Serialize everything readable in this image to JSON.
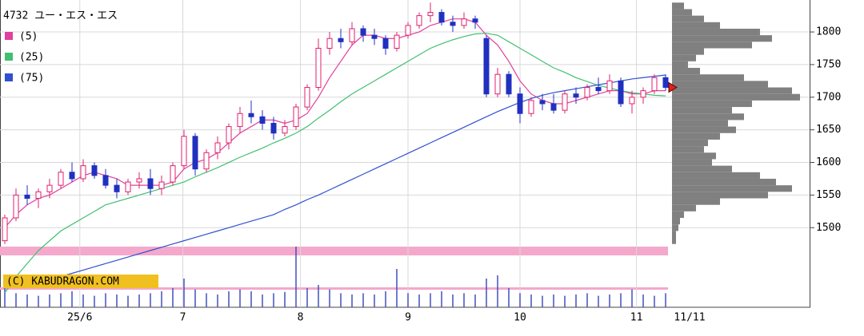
{
  "chart_data": {
    "type": "candlestick",
    "title": "4732 ユー・エス・エス",
    "watermark": "(C) KABUDRAGON.COM",
    "last_date": "11/11",
    "ylim": [
      1378,
      1849
    ],
    "yticks": [
      1500,
      1550,
      1600,
      1650,
      1700,
      1750,
      1800
    ],
    "grid": true,
    "xticks": [
      {
        "value": 6.7,
        "label": "25/6"
      },
      {
        "value": 15.9,
        "label": "7"
      },
      {
        "value": 26.4,
        "label": "8"
      },
      {
        "value": 36,
        "label": "9"
      },
      {
        "value": 46,
        "label": "10"
      },
      {
        "value": 56.4,
        "label": "11"
      }
    ],
    "up_color": "#e0206f",
    "down_color": "#2030c0",
    "candles": [
      [
        1480,
        1520,
        1475,
        1515
      ],
      [
        1515,
        1560,
        1510,
        1550
      ],
      [
        1550,
        1565,
        1535,
        1545
      ],
      [
        1545,
        1560,
        1530,
        1555
      ],
      [
        1555,
        1575,
        1545,
        1565
      ],
      [
        1565,
        1590,
        1560,
        1585
      ],
      [
        1585,
        1600,
        1570,
        1575
      ],
      [
        1575,
        1605,
        1570,
        1595
      ],
      [
        1595,
        1600,
        1575,
        1580
      ],
      [
        1580,
        1590,
        1560,
        1565
      ],
      [
        1565,
        1575,
        1545,
        1555
      ],
      [
        1555,
        1575,
        1550,
        1570
      ],
      [
        1570,
        1585,
        1560,
        1575
      ],
      [
        1575,
        1590,
        1550,
        1560
      ],
      [
        1560,
        1580,
        1550,
        1570
      ],
      [
        1570,
        1600,
        1565,
        1595
      ],
      [
        1595,
        1650,
        1590,
        1640
      ],
      [
        1640,
        1645,
        1580,
        1590
      ],
      [
        1590,
        1620,
        1585,
        1615
      ],
      [
        1615,
        1640,
        1605,
        1630
      ],
      [
        1630,
        1660,
        1620,
        1655
      ],
      [
        1655,
        1685,
        1645,
        1675
      ],
      [
        1675,
        1695,
        1660,
        1670
      ],
      [
        1670,
        1680,
        1650,
        1660
      ],
      [
        1660,
        1670,
        1635,
        1645
      ],
      [
        1645,
        1665,
        1640,
        1655
      ],
      [
        1655,
        1690,
        1650,
        1685
      ],
      [
        1685,
        1720,
        1680,
        1715
      ],
      [
        1715,
        1790,
        1710,
        1775
      ],
      [
        1775,
        1800,
        1765,
        1790
      ],
      [
        1790,
        1805,
        1775,
        1785
      ],
      [
        1785,
        1815,
        1780,
        1805
      ],
      [
        1805,
        1810,
        1785,
        1795
      ],
      [
        1795,
        1805,
        1780,
        1790
      ],
      [
        1790,
        1795,
        1765,
        1775
      ],
      [
        1775,
        1800,
        1770,
        1795
      ],
      [
        1795,
        1815,
        1790,
        1810
      ],
      [
        1810,
        1830,
        1805,
        1825
      ],
      [
        1825,
        1845,
        1815,
        1830
      ],
      [
        1830,
        1835,
        1810,
        1815
      ],
      [
        1815,
        1825,
        1800,
        1810
      ],
      [
        1810,
        1830,
        1805,
        1820
      ],
      [
        1820,
        1825,
        1805,
        1815
      ],
      [
        1790,
        1795,
        1700,
        1705
      ],
      [
        1705,
        1745,
        1700,
        1735
      ],
      [
        1735,
        1740,
        1700,
        1705
      ],
      [
        1705,
        1715,
        1660,
        1675
      ],
      [
        1675,
        1700,
        1670,
        1695
      ],
      [
        1695,
        1705,
        1680,
        1690
      ],
      [
        1690,
        1705,
        1675,
        1680
      ],
      [
        1680,
        1710,
        1675,
        1705
      ],
      [
        1705,
        1715,
        1690,
        1700
      ],
      [
        1700,
        1720,
        1695,
        1715
      ],
      [
        1715,
        1730,
        1705,
        1710
      ],
      [
        1710,
        1735,
        1705,
        1725
      ],
      [
        1725,
        1730,
        1685,
        1690
      ],
      [
        1690,
        1710,
        1675,
        1700
      ],
      [
        1700,
        1715,
        1690,
        1710
      ],
      [
        1710,
        1735,
        1705,
        1730
      ],
      [
        1730,
        1735,
        1710,
        1715
      ]
    ],
    "series": [
      {
        "name": "(5)",
        "color": "#e040a0",
        "values": [
          1500,
          1520,
          1535,
          1545,
          1550,
          1560,
          1570,
          1580,
          1585,
          1580,
          1575,
          1565,
          1565,
          1565,
          1565,
          1570,
          1590,
          1600,
          1605,
          1615,
          1630,
          1645,
          1655,
          1665,
          1665,
          1660,
          1665,
          1675,
          1700,
          1730,
          1755,
          1780,
          1795,
          1795,
          1790,
          1790,
          1795,
          1800,
          1810,
          1815,
          1820,
          1820,
          1815,
          1795,
          1780,
          1755,
          1725,
          1705,
          1695,
          1690,
          1690,
          1695,
          1700,
          1705,
          1710,
          1710,
          1705,
          1705,
          1710,
          1710
        ]
      },
      {
        "name": "(25)",
        "color": "#40c070",
        "values": [
          1400,
          1425,
          1445,
          1465,
          1480,
          1495,
          1505,
          1515,
          1525,
          1535,
          1540,
          1545,
          1550,
          1555,
          1560,
          1565,
          1570,
          1578,
          1585,
          1592,
          1600,
          1608,
          1615,
          1622,
          1630,
          1637,
          1645,
          1655,
          1668,
          1680,
          1693,
          1705,
          1715,
          1725,
          1735,
          1745,
          1755,
          1765,
          1775,
          1782,
          1788,
          1793,
          1797,
          1798,
          1795,
          1785,
          1775,
          1765,
          1755,
          1745,
          1738,
          1730,
          1724,
          1718,
          1714,
          1710,
          1707,
          1705,
          1703,
          1702
        ]
      },
      {
        "name": "(75)",
        "color": "#3050d0",
        "values": [
          null,
          null,
          null,
          null,
          1420,
          1425,
          1430,
          1435,
          1440,
          1445,
          1450,
          1455,
          1460,
          1465,
          1470,
          1475,
          1480,
          1485,
          1490,
          1495,
          1500,
          1505,
          1510,
          1515,
          1520,
          1528,
          1535,
          1543,
          1550,
          1558,
          1566,
          1574,
          1582,
          1590,
          1598,
          1606,
          1614,
          1622,
          1630,
          1638,
          1646,
          1654,
          1662,
          1670,
          1678,
          1685,
          1692,
          1698,
          1703,
          1707,
          1710,
          1713,
          1716,
          1719,
          1722,
          1725,
          1728,
          1730,
          1732,
          1734
        ]
      }
    ],
    "volume": {
      "color": "#4050c0",
      "ylim": [
        0,
        100
      ],
      "values": [
        30,
        22,
        20,
        18,
        20,
        22,
        25,
        20,
        18,
        22,
        20,
        18,
        20,
        22,
        25,
        30,
        45,
        28,
        22,
        20,
        25,
        28,
        25,
        20,
        22,
        24,
        95,
        30,
        35,
        28,
        22,
        20,
        22,
        20,
        25,
        60,
        22,
        20,
        22,
        25,
        20,
        22,
        20,
        45,
        50,
        30,
        22,
        20,
        18,
        20,
        18,
        20,
        22,
        18,
        20,
        22,
        28,
        20,
        18,
        22
      ]
    },
    "volume_profile": {
      "color": "#808080",
      "xlim": [
        0,
        170
      ],
      "prices": [
        1840,
        1830,
        1820,
        1810,
        1800,
        1790,
        1780,
        1770,
        1760,
        1750,
        1740,
        1730,
        1720,
        1710,
        1700,
        1690,
        1680,
        1670,
        1660,
        1650,
        1640,
        1630,
        1620,
        1610,
        1600,
        1590,
        1580,
        1570,
        1560,
        1550,
        1540,
        1530,
        1520,
        1510,
        1500,
        1490,
        1480
      ],
      "values": [
        15,
        25,
        40,
        60,
        110,
        125,
        100,
        40,
        30,
        20,
        35,
        90,
        120,
        150,
        160,
        100,
        75,
        90,
        70,
        80,
        60,
        45,
        40,
        55,
        50,
        75,
        110,
        130,
        150,
        120,
        60,
        30,
        15,
        10,
        8,
        5,
        5
      ]
    }
  }
}
